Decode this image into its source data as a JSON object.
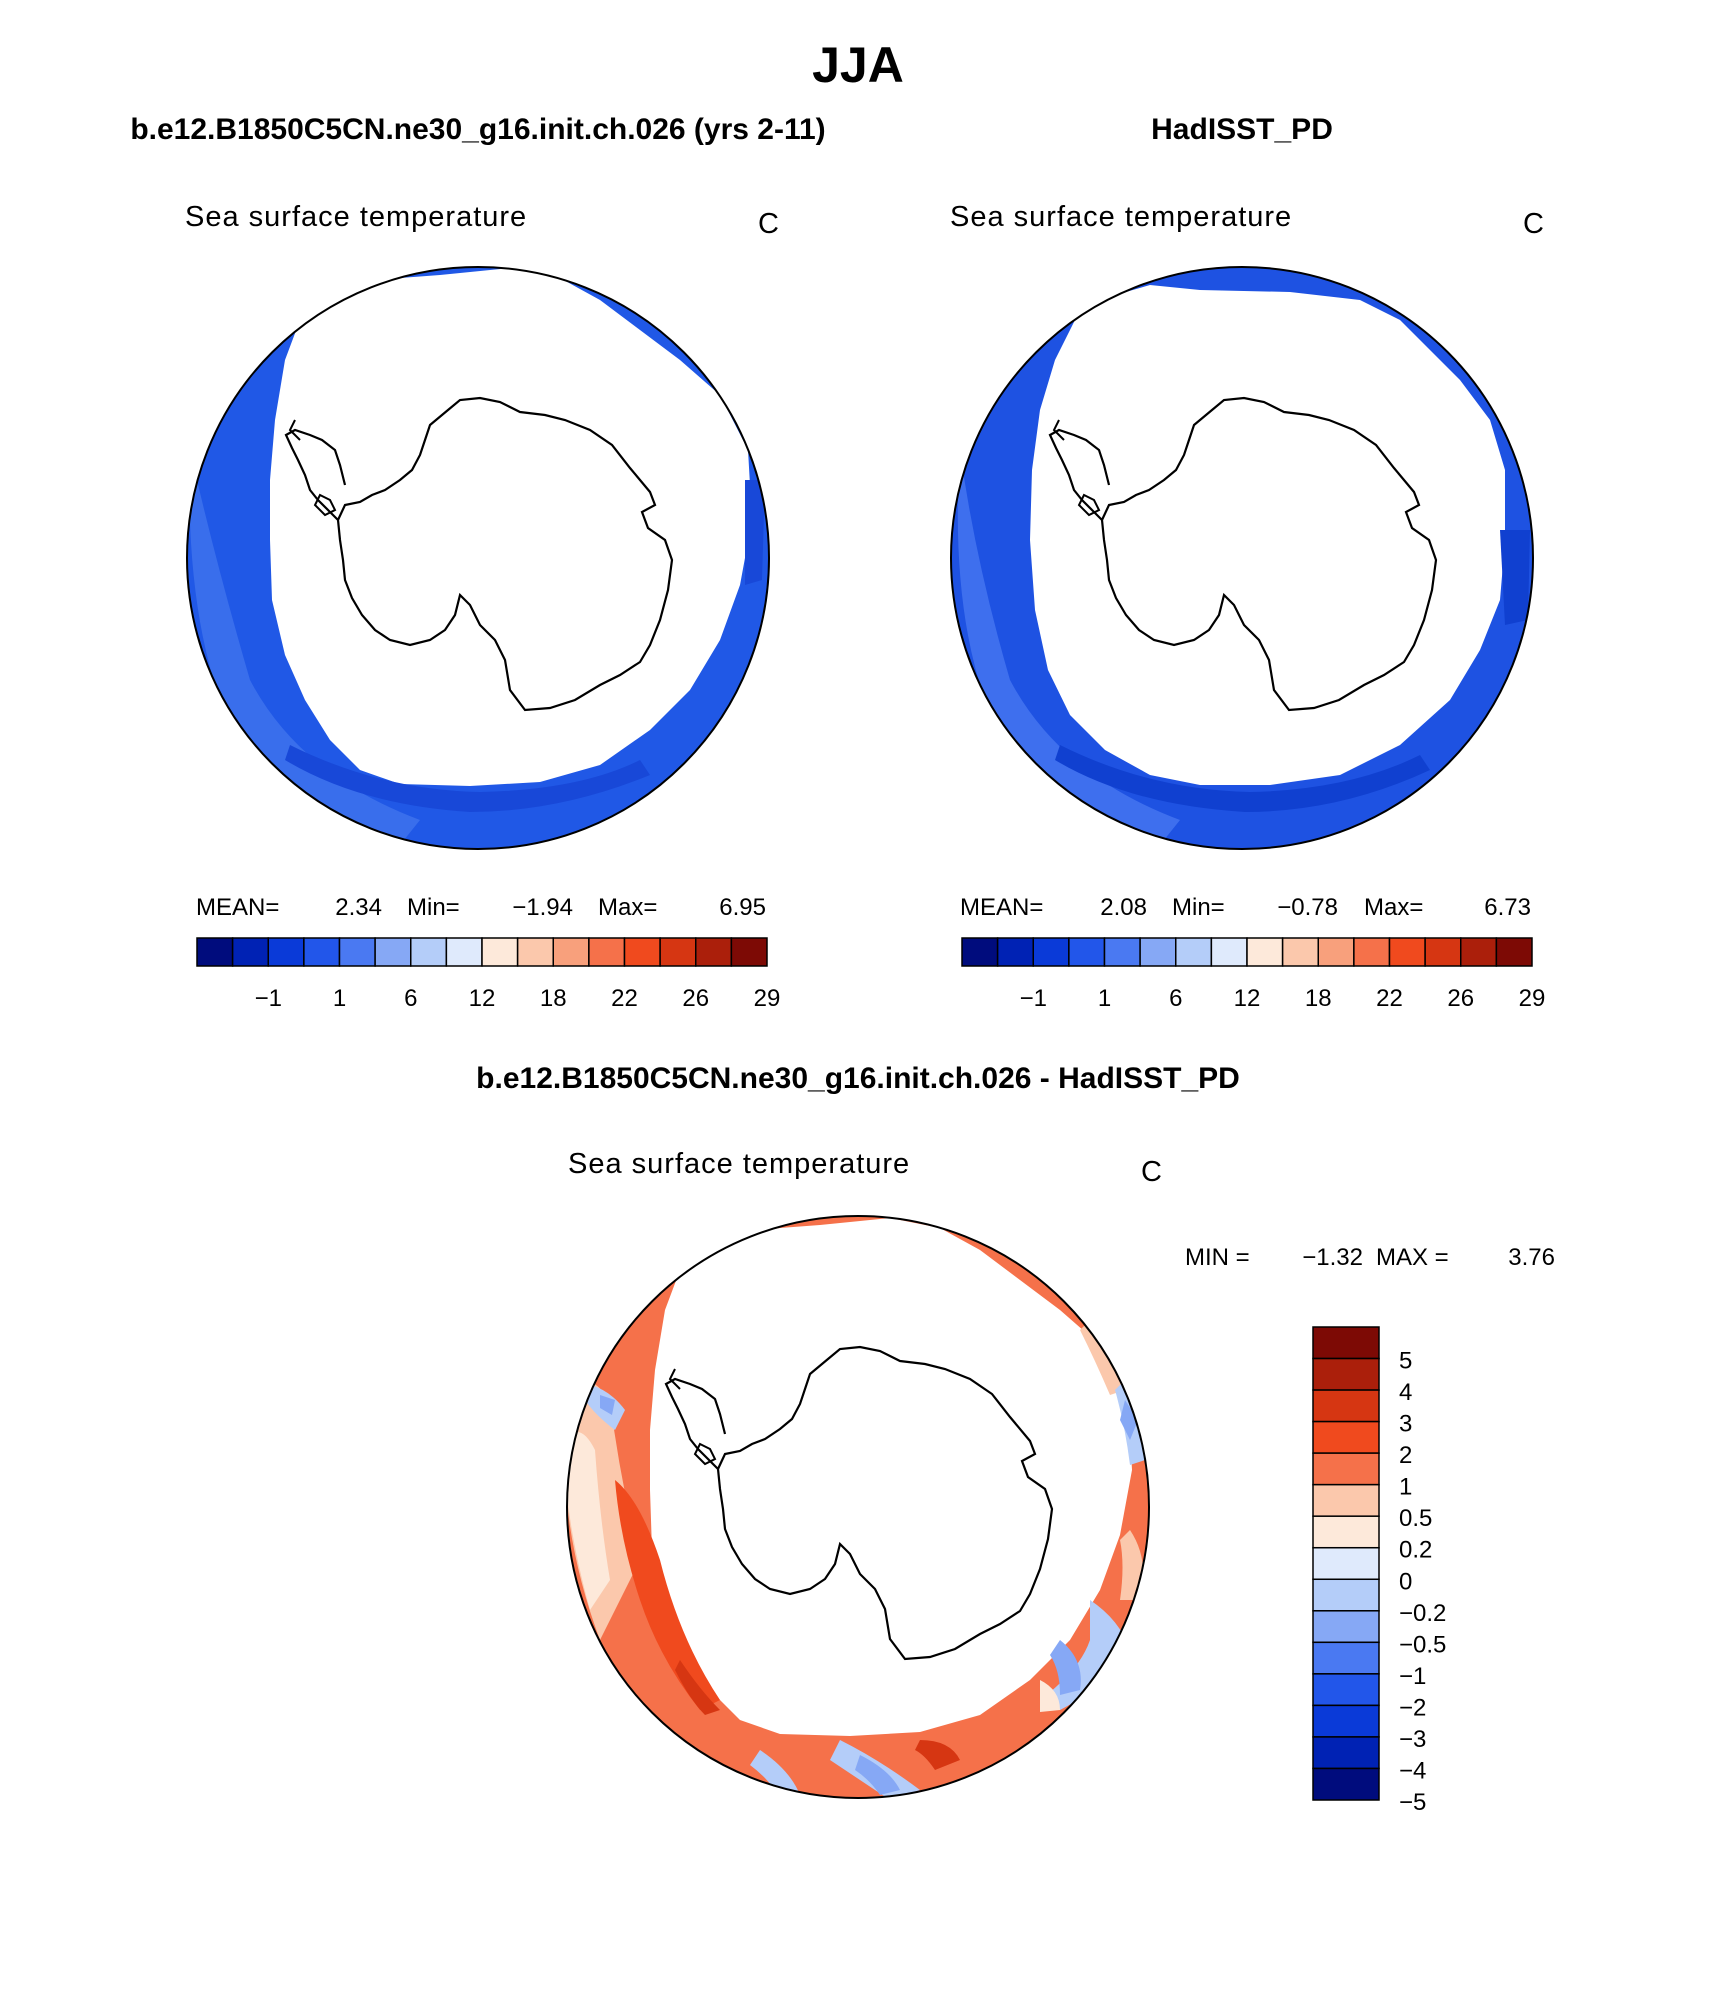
{
  "figure": {
    "title": "JJA",
    "colors": {
      "sst_palette": [
        "#000c7d",
        "#0022b4",
        "#0a3ad8",
        "#2256ea",
        "#4a79f2",
        "#86a8f5",
        "#b4cdf9",
        "#dfeafc",
        "#fde9da",
        "#fbc8ac",
        "#f8a07c",
        "#f5714a",
        "#f04a1e",
        "#d63612",
        "#ab1f0b",
        "#7d0a05"
      ],
      "diff_palette": [
        "#7d0a05",
        "#ab1f0b",
        "#d63612",
        "#f04a1e",
        "#f5714a",
        "#fbc8ac",
        "#fde9da",
        "#dfeafc",
        "#b4cdf9",
        "#86a8f5",
        "#4a79f2",
        "#2256ea",
        "#0a3ad8",
        "#0022b4",
        "#000c7d"
      ],
      "ocean_model": "#2058e6",
      "ocean_obs": "#1e52e2",
      "land_outline": "#000000"
    }
  },
  "panels": {
    "model": {
      "title": "b.e12.B1850C5CN.ne30_g16.init.ch.026 (yrs 2-11)",
      "variable": "Sea surface temperature",
      "units": "C",
      "stats": {
        "mean_label": "MEAN=",
        "mean": "2.34",
        "min_label": "Min=",
        "min": "−1.94",
        "max_label": "Max=",
        "max": "6.95"
      },
      "colorbar_ticks": [
        "−1",
        "1",
        "6",
        "12",
        "18",
        "22",
        "26",
        "29"
      ]
    },
    "obs": {
      "title": "HadISST_PD",
      "variable": "Sea surface temperature",
      "units": "C",
      "stats": {
        "mean_label": "MEAN=",
        "mean": "2.08",
        "min_label": "Min=",
        "min": "−0.78",
        "max_label": "Max=",
        "max": "6.73"
      },
      "colorbar_ticks": [
        "−1",
        "1",
        "6",
        "12",
        "18",
        "22",
        "26",
        "29"
      ]
    },
    "diff": {
      "title": "b.e12.B1850C5CN.ne30_g16.init.ch.026 - HadISST_PD",
      "variable": "Sea surface temperature",
      "units": "C",
      "stats": {
        "min_label": "MIN =",
        "min": "−1.32",
        "max_label": "MAX =",
        "max": "3.76"
      },
      "colorbar_ticks": [
        "5",
        "4",
        "3",
        "2",
        "1",
        "0.5",
        "0.2",
        "0",
        "−0.2",
        "−0.5",
        "−1",
        "−2",
        "−3",
        "−4",
        "−5"
      ]
    }
  }
}
